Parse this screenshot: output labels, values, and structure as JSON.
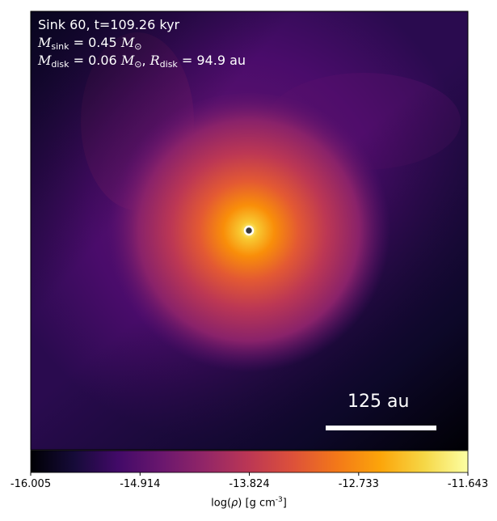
{
  "chart_data": {
    "type": "heatmap",
    "title": "Sink 60, t=109.26 kyr",
    "annotation": {
      "sink_mass_label": "M_sink = 0.45 M_sun",
      "disk_mass_label": "M_disk = 0.06 M_sun",
      "disk_radius_label": "R_disk = 94.9 au"
    },
    "scale_bar": {
      "label": "125 au",
      "length_au": 125
    },
    "colormap": "inferno",
    "colorbar": {
      "label_prefix": "log(",
      "label_symbol": "ρ",
      "label_suffix": ") [g cm",
      "label_exp": "-3",
      "label_end": "]",
      "range": [
        -16.005,
        -11.643
      ],
      "ticks": [
        "-16.005",
        "-14.914",
        "-13.824",
        "-12.733",
        "-11.643"
      ]
    },
    "sink_marker": "circle"
  },
  "colors": {
    "background_low": "#000004",
    "background_mid": "#420a68",
    "peak": "#fcffa4",
    "marker_edge": "#ffffff",
    "marker_fill": "#3a3a3a"
  }
}
